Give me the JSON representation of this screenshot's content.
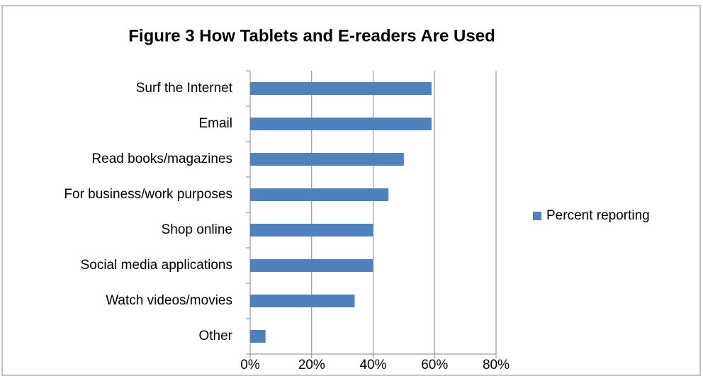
{
  "chart_data": {
    "type": "barh",
    "title": "Figure 3 How Tablets and E-readers Are Used",
    "categories": [
      "Surf the Internet",
      "Email",
      "Read books/magazines",
      "For business/work purposes",
      "Shop online",
      "Social media applications",
      "Watch videos/movies",
      "Other"
    ],
    "series": [
      {
        "name": "Percent reporting",
        "color": "#4f81bd",
        "values": [
          59,
          59,
          50,
          45,
          40,
          40,
          34,
          5
        ]
      }
    ],
    "xlim": [
      0,
      80
    ],
    "xticks": [
      {
        "value": 0,
        "label": "0%"
      },
      {
        "value": 20,
        "label": "20%"
      },
      {
        "value": 40,
        "label": "40%"
      },
      {
        "value": 60,
        "label": "60%"
      },
      {
        "value": 80,
        "label": "80%"
      }
    ],
    "grid": true,
    "legend": "right"
  }
}
